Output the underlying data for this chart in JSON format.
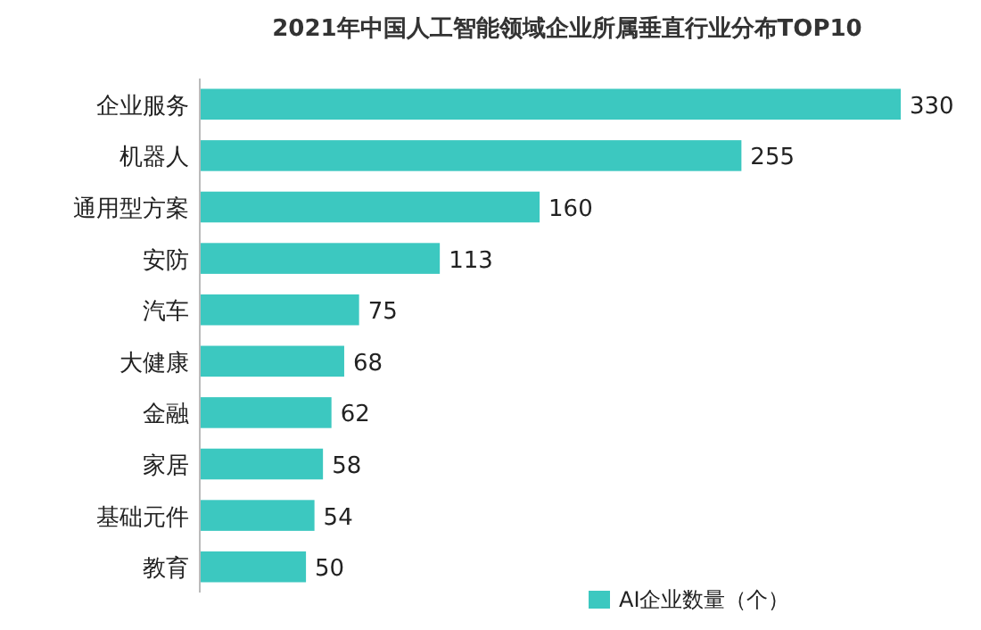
{
  "chart_data": {
    "type": "bar",
    "orientation": "horizontal",
    "title": "2021年中国人工智能领域企业所属垂直行业分布TOP10",
    "categories": [
      "企业服务",
      "机器人",
      "通用型方案",
      "安防",
      "汽车",
      "大健康",
      "金融",
      "家居",
      "基础元件",
      "教育"
    ],
    "series": [
      {
        "name": "AI企业数量（个）",
        "color": "#3cc8c0",
        "values": [
          330,
          255,
          160,
          113,
          75,
          68,
          62,
          58,
          54,
          50
        ]
      }
    ],
    "data_labels": true,
    "legend": "bottom right"
  }
}
